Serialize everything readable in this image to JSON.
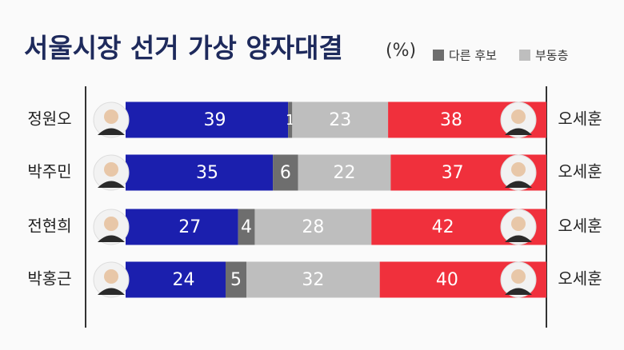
{
  "chart_data": {
    "type": "stacked-bar-horizontal",
    "title": "서울시장 선거 가상 양자대결",
    "unit": "(%)",
    "categories": [
      "정원오",
      "박주민",
      "전현희",
      "박홍근"
    ],
    "right_labels": [
      "오세훈",
      "오세훈",
      "오세훈",
      "오세훈"
    ],
    "series": [
      {
        "color": "#1b1fae",
        "values": [
          39,
          35,
          27,
          24
        ]
      },
      {
        "name": "다른 후보",
        "color": "#6e6e6e",
        "values": [
          1,
          6,
          4,
          5
        ]
      },
      {
        "name": "부동층",
        "color": "#bebebe",
        "values": [
          23,
          22,
          28,
          32
        ]
      },
      {
        "color": "#f0303c",
        "values": [
          38,
          37,
          42,
          40
        ]
      }
    ]
  }
}
